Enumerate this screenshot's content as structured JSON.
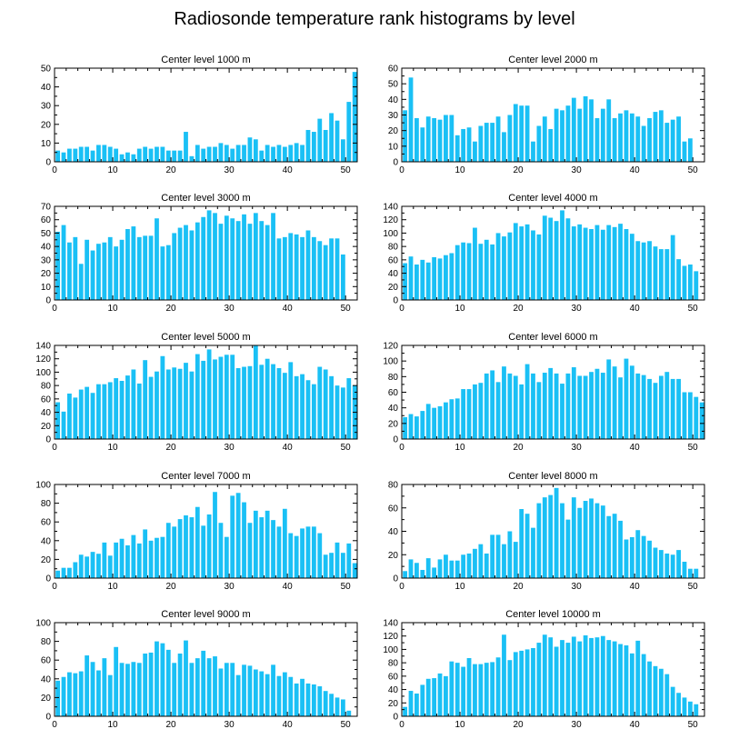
{
  "title": "Radiosonde temperature rank histograms by level",
  "bar_color": "#1ac0f5",
  "chart_data": [
    {
      "type": "bar",
      "title": "Center level 1000 m",
      "x": [
        0,
        1,
        2,
        3,
        4,
        5,
        6,
        7,
        8,
        9,
        10,
        11,
        12,
        13,
        14,
        15,
        16,
        17,
        18,
        19,
        20,
        21,
        22,
        23,
        24,
        25,
        26,
        27,
        28,
        29,
        30,
        31,
        32,
        33,
        34,
        35,
        36,
        37,
        38,
        39,
        40,
        41,
        42,
        43,
        44,
        45,
        46,
        47,
        48,
        49,
        50,
        51
      ],
      "values": [
        6,
        5,
        7,
        7,
        8,
        8,
        6,
        9,
        9,
        8,
        7,
        4,
        5,
        4,
        7,
        8,
        7,
        8,
        8,
        6,
        6,
        6,
        16,
        3,
        9,
        7,
        8,
        8,
        10,
        9,
        7,
        9,
        9,
        13,
        12,
        6,
        9,
        8,
        9,
        8,
        9,
        10,
        9,
        17,
        16,
        23,
        17,
        26,
        22,
        12,
        32,
        48
      ],
      "ylim": [
        0,
        50
      ],
      "yticks": [
        0,
        10,
        20,
        30,
        40,
        50
      ],
      "xlim": [
        0,
        52
      ],
      "xticks": [
        0,
        10,
        20,
        30,
        40,
        50
      ]
    },
    {
      "type": "bar",
      "title": "Center level 2000 m",
      "x": [
        0,
        1,
        2,
        3,
        4,
        5,
        6,
        7,
        8,
        9,
        10,
        11,
        12,
        13,
        14,
        15,
        16,
        17,
        18,
        19,
        20,
        21,
        22,
        23,
        24,
        25,
        26,
        27,
        28,
        29,
        30,
        31,
        32,
        33,
        34,
        35,
        36,
        37,
        38,
        39,
        40,
        41,
        42,
        43,
        44,
        45,
        46,
        47,
        48,
        49,
        50,
        51
      ],
      "values": [
        33,
        54,
        28,
        22,
        29,
        28,
        27,
        30,
        30,
        17,
        21,
        22,
        13,
        23,
        25,
        25,
        29,
        19,
        30,
        37,
        36,
        36,
        13,
        23,
        29,
        21,
        34,
        33,
        36,
        41,
        34,
        42,
        40,
        28,
        34,
        40,
        28,
        31,
        33,
        31,
        29,
        23,
        28,
        32,
        33,
        25,
        27,
        29,
        13,
        15,
        0,
        0
      ],
      "ylim": [
        0,
        60
      ],
      "yticks": [
        0,
        10,
        20,
        30,
        40,
        50,
        60
      ],
      "xlim": [
        0,
        52
      ],
      "xticks": [
        0,
        10,
        20,
        30,
        40,
        50
      ]
    },
    {
      "type": "bar",
      "title": "Center level 3000 m",
      "x": [
        0,
        1,
        2,
        3,
        4,
        5,
        6,
        7,
        8,
        9,
        10,
        11,
        12,
        13,
        14,
        15,
        16,
        17,
        18,
        19,
        20,
        21,
        22,
        23,
        24,
        25,
        26,
        27,
        28,
        29,
        30,
        31,
        32,
        33,
        34,
        35,
        36,
        37,
        38,
        39,
        40,
        41,
        42,
        43,
        44,
        45,
        46,
        47,
        48,
        49,
        50,
        51
      ],
      "values": [
        51,
        56,
        43,
        47,
        27,
        45,
        37,
        42,
        43,
        47,
        40,
        45,
        53,
        55,
        47,
        48,
        48,
        61,
        40,
        41,
        50,
        54,
        56,
        52,
        58,
        62,
        67,
        65,
        57,
        63,
        61,
        59,
        64,
        57,
        65,
        59,
        56,
        65,
        46,
        47,
        50,
        49,
        47,
        52,
        47,
        44,
        41,
        46,
        46,
        34,
        0,
        0
      ],
      "ylim": [
        0,
        70
      ],
      "yticks": [
        0,
        10,
        20,
        30,
        40,
        50,
        60,
        70
      ],
      "xlim": [
        0,
        52
      ],
      "xticks": [
        0,
        10,
        20,
        30,
        40,
        50
      ]
    },
    {
      "type": "bar",
      "title": "Center level 4000 m",
      "x": [
        0,
        1,
        2,
        3,
        4,
        5,
        6,
        7,
        8,
        9,
        10,
        11,
        12,
        13,
        14,
        15,
        16,
        17,
        18,
        19,
        20,
        21,
        22,
        23,
        24,
        25,
        26,
        27,
        28,
        29,
        30,
        31,
        32,
        33,
        34,
        35,
        36,
        37,
        38,
        39,
        40,
        41,
        42,
        43,
        44,
        45,
        46,
        47,
        48,
        49,
        50,
        51
      ],
      "values": [
        55,
        65,
        53,
        60,
        56,
        64,
        62,
        67,
        70,
        82,
        86,
        85,
        108,
        84,
        90,
        83,
        100,
        95,
        101,
        115,
        110,
        113,
        104,
        98,
        126,
        123,
        118,
        134,
        122,
        110,
        113,
        108,
        106,
        112,
        105,
        112,
        109,
        114,
        106,
        99,
        88,
        86,
        88,
        80,
        76,
        76,
        97,
        61,
        51,
        53,
        43,
        0
      ],
      "ylim": [
        0,
        140
      ],
      "yticks": [
        0,
        20,
        40,
        60,
        80,
        100,
        120,
        140
      ],
      "xlim": [
        0,
        52
      ],
      "xticks": [
        0,
        10,
        20,
        30,
        40,
        50
      ]
    },
    {
      "type": "bar",
      "title": "Center level 5000 m",
      "x": [
        0,
        1,
        2,
        3,
        4,
        5,
        6,
        7,
        8,
        9,
        10,
        11,
        12,
        13,
        14,
        15,
        16,
        17,
        18,
        19,
        20,
        21,
        22,
        23,
        24,
        25,
        26,
        27,
        28,
        29,
        30,
        31,
        32,
        33,
        34,
        35,
        36,
        37,
        38,
        39,
        40,
        41,
        42,
        43,
        44,
        45,
        46,
        47,
        48,
        49,
        50,
        51
      ],
      "values": [
        55,
        41,
        68,
        62,
        74,
        78,
        69,
        82,
        82,
        85,
        91,
        87,
        95,
        104,
        83,
        118,
        93,
        101,
        124,
        104,
        107,
        105,
        114,
        101,
        127,
        117,
        134,
        119,
        123,
        126,
        126,
        106,
        108,
        109,
        140,
        111,
        120,
        112,
        106,
        99,
        115,
        94,
        97,
        88,
        82,
        108,
        104,
        94,
        80,
        77,
        91,
        80
      ],
      "ylim": [
        0,
        140
      ],
      "yticks": [
        0,
        20,
        40,
        60,
        80,
        100,
        120,
        140
      ],
      "xlim": [
        0,
        52
      ],
      "xticks": [
        0,
        10,
        20,
        30,
        40,
        50
      ]
    },
    {
      "type": "bar",
      "title": "Center level 6000 m",
      "x": [
        0,
        1,
        2,
        3,
        4,
        5,
        6,
        7,
        8,
        9,
        10,
        11,
        12,
        13,
        14,
        15,
        16,
        17,
        18,
        19,
        20,
        21,
        22,
        23,
        24,
        25,
        26,
        27,
        28,
        29,
        30,
        31,
        32,
        33,
        34,
        35,
        36,
        37,
        38,
        39,
        40,
        41,
        42,
        43,
        44,
        45,
        46,
        47,
        48,
        49,
        50,
        51
      ],
      "values": [
        28,
        32,
        29,
        36,
        45,
        40,
        42,
        47,
        51,
        52,
        64,
        64,
        70,
        72,
        84,
        88,
        73,
        93,
        84,
        81,
        70,
        96,
        84,
        73,
        85,
        91,
        84,
        71,
        84,
        92,
        81,
        81,
        86,
        90,
        85,
        102,
        93,
        79,
        103,
        94,
        84,
        82,
        77,
        72,
        81,
        86,
        77,
        77,
        60,
        60,
        54,
        47
      ],
      "ylim": [
        0,
        120
      ],
      "yticks": [
        0,
        20,
        40,
        60,
        80,
        100,
        120
      ],
      "xlim": [
        0,
        52
      ],
      "xticks": [
        0,
        10,
        20,
        30,
        40,
        50
      ]
    },
    {
      "type": "bar",
      "title": "Center level 7000 m",
      "x": [
        0,
        1,
        2,
        3,
        4,
        5,
        6,
        7,
        8,
        9,
        10,
        11,
        12,
        13,
        14,
        15,
        16,
        17,
        18,
        19,
        20,
        21,
        22,
        23,
        24,
        25,
        26,
        27,
        28,
        29,
        30,
        31,
        32,
        33,
        34,
        35,
        36,
        37,
        38,
        39,
        40,
        41,
        42,
        43,
        44,
        45,
        46,
        47,
        48,
        49,
        50,
        51
      ],
      "values": [
        8,
        11,
        11,
        17,
        25,
        23,
        28,
        26,
        38,
        24,
        38,
        42,
        35,
        46,
        37,
        52,
        40,
        43,
        44,
        59,
        55,
        63,
        67,
        65,
        76,
        56,
        68,
        92,
        59,
        44,
        88,
        91,
        81,
        59,
        72,
        65,
        72,
        62,
        55,
        74,
        48,
        45,
        53,
        55,
        55,
        48,
        25,
        27,
        38,
        27,
        37,
        16
      ],
      "ylim": [
        0,
        100
      ],
      "yticks": [
        0,
        20,
        40,
        60,
        80,
        100
      ],
      "xlim": [
        0,
        52
      ],
      "xticks": [
        0,
        10,
        20,
        30,
        40,
        50
      ]
    },
    {
      "type": "bar",
      "title": "Center level 8000 m",
      "x": [
        0,
        1,
        2,
        3,
        4,
        5,
        6,
        7,
        8,
        9,
        10,
        11,
        12,
        13,
        14,
        15,
        16,
        17,
        18,
        19,
        20,
        21,
        22,
        23,
        24,
        25,
        26,
        27,
        28,
        29,
        30,
        31,
        32,
        33,
        34,
        35,
        36,
        37,
        38,
        39,
        40,
        41,
        42,
        43,
        44,
        45,
        46,
        47,
        48,
        49,
        50,
        51
      ],
      "values": [
        6,
        16,
        13,
        7,
        17,
        9,
        16,
        20,
        15,
        15,
        20,
        21,
        25,
        29,
        21,
        37,
        37,
        29,
        40,
        31,
        59,
        55,
        43,
        64,
        69,
        71,
        77,
        64,
        50,
        69,
        60,
        66,
        68,
        64,
        62,
        53,
        55,
        49,
        33,
        35,
        41,
        36,
        32,
        26,
        24,
        21,
        20,
        24,
        14,
        8,
        8,
        0
      ],
      "ylim": [
        0,
        80
      ],
      "yticks": [
        0,
        20,
        40,
        60,
        80
      ],
      "xlim": [
        0,
        52
      ],
      "xticks": [
        0,
        10,
        20,
        30,
        40,
        50
      ]
    },
    {
      "type": "bar",
      "title": "Center level 9000 m",
      "x": [
        0,
        1,
        2,
        3,
        4,
        5,
        6,
        7,
        8,
        9,
        10,
        11,
        12,
        13,
        14,
        15,
        16,
        17,
        18,
        19,
        20,
        21,
        22,
        23,
        24,
        25,
        26,
        27,
        28,
        29,
        30,
        31,
        32,
        33,
        34,
        35,
        36,
        37,
        38,
        39,
        40,
        41,
        42,
        43,
        44,
        45,
        46,
        47,
        48,
        49,
        50,
        51
      ],
      "values": [
        38,
        42,
        47,
        46,
        48,
        65,
        58,
        49,
        62,
        44,
        74,
        57,
        56,
        58,
        57,
        67,
        68,
        80,
        78,
        71,
        57,
        67,
        81,
        57,
        62,
        70,
        62,
        64,
        51,
        57,
        57,
        44,
        55,
        54,
        50,
        48,
        45,
        55,
        43,
        47,
        42,
        35,
        40,
        35,
        34,
        32,
        27,
        24,
        20,
        18,
        6,
        0
      ],
      "ylim": [
        0,
        100
      ],
      "yticks": [
        0,
        20,
        40,
        60,
        80,
        100
      ],
      "xlim": [
        0,
        52
      ],
      "xticks": [
        0,
        10,
        20,
        30,
        40,
        50
      ]
    },
    {
      "type": "bar",
      "title": "Center level 10000 m",
      "x": [
        0,
        1,
        2,
        3,
        4,
        5,
        6,
        7,
        8,
        9,
        10,
        11,
        12,
        13,
        14,
        15,
        16,
        17,
        18,
        19,
        20,
        21,
        22,
        23,
        24,
        25,
        26,
        27,
        28,
        29,
        30,
        31,
        32,
        33,
        34,
        35,
        36,
        37,
        38,
        39,
        40,
        41,
        42,
        43,
        44,
        45,
        46,
        47,
        48,
        49,
        50,
        51
      ],
      "values": [
        14,
        38,
        34,
        47,
        56,
        57,
        64,
        60,
        82,
        80,
        74,
        87,
        78,
        78,
        80,
        81,
        88,
        122,
        84,
        96,
        98,
        100,
        102,
        110,
        122,
        118,
        104,
        114,
        110,
        119,
        112,
        121,
        117,
        118,
        120,
        114,
        112,
        108,
        106,
        94,
        113,
        93,
        82,
        75,
        71,
        63,
        44,
        35,
        28,
        22,
        18,
        0
      ],
      "ylim": [
        0,
        140
      ],
      "yticks": [
        0,
        20,
        40,
        60,
        80,
        100,
        120,
        140
      ],
      "xlim": [
        0,
        52
      ],
      "xticks": [
        0,
        10,
        20,
        30,
        40,
        50
      ]
    }
  ]
}
